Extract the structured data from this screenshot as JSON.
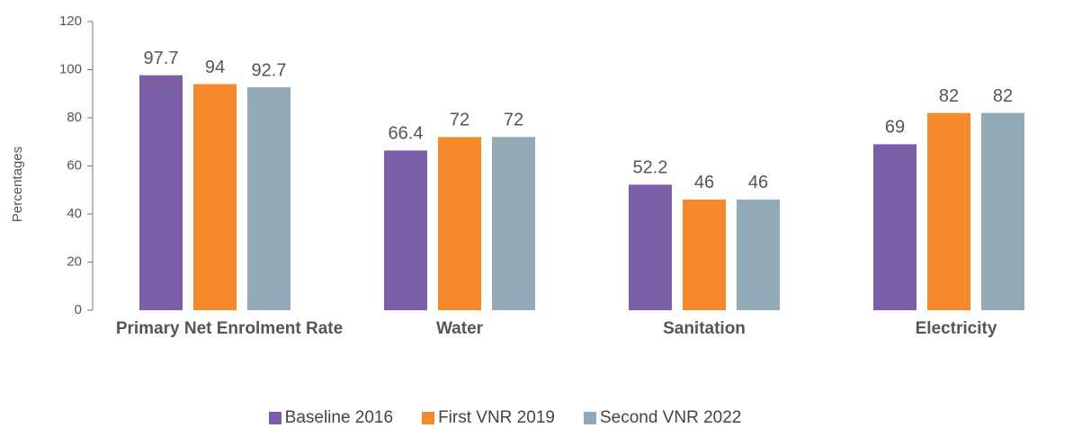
{
  "chart_data": {
    "type": "bar",
    "categories": [
      "Primary Net Enrolment Rate",
      "Water",
      "Sanitation",
      "Electricity"
    ],
    "series": [
      {
        "name": "Baseline 2016",
        "color": "#7b5ea7",
        "values": [
          97.7,
          66.4,
          52.2,
          69
        ]
      },
      {
        "name": "First VNR 2019",
        "color": "#f5892a",
        "values": [
          94,
          72,
          46,
          82
        ]
      },
      {
        "name": "Second VNR 2022",
        "color": "#93a9b5",
        "values": [
          92.7,
          72,
          46,
          82
        ]
      }
    ],
    "y_label": "Percentages",
    "ylim": [
      0,
      120
    ],
    "yticks": [
      0,
      20,
      40,
      60,
      80,
      100,
      120
    ],
    "legend": "bottom"
  }
}
